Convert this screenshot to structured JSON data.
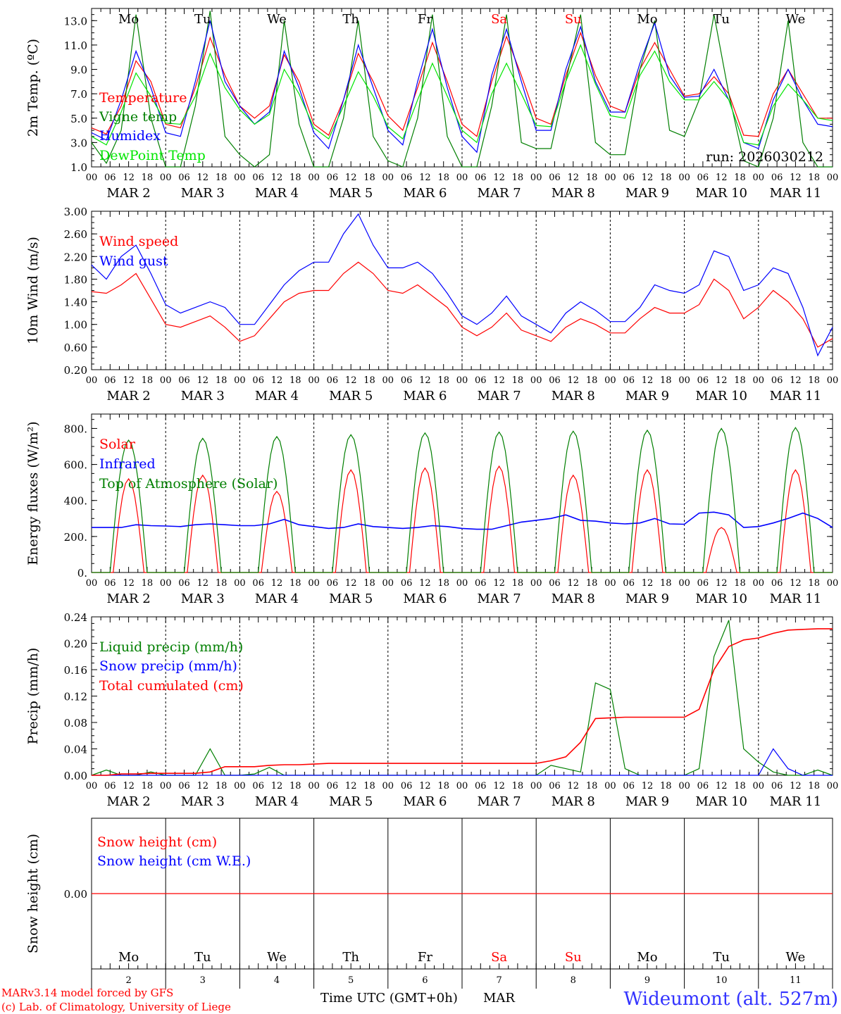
{
  "header": {
    "run_label": "run: 2026030212"
  },
  "footer": {
    "model_line": "MARv3.14 model forced by GFS",
    "credit_line": "(c) Lab. of Climatology, University of Liege",
    "xaxis_label": "Time UTC (GMT+0h)",
    "month": "MAR",
    "station": "Wideumont (alt. 527m)"
  },
  "colors": {
    "red": "#ff0000",
    "green": "#007f00",
    "blue": "#0000ff",
    "lightgreen": "#00e600",
    "station": "#3333ff"
  },
  "days": [
    {
      "name": "Mo",
      "date": "2",
      "weekend": false
    },
    {
      "name": "Tu",
      "date": "3",
      "weekend": false
    },
    {
      "name": "We",
      "date": "4",
      "weekend": false
    },
    {
      "name": "Th",
      "date": "5",
      "weekend": false
    },
    {
      "name": "Fr",
      "date": "6",
      "weekend": false
    },
    {
      "name": "Sa",
      "date": "7",
      "weekend": true
    },
    {
      "name": "Su",
      "date": "8",
      "weekend": true
    },
    {
      "name": "Mo",
      "date": "9",
      "weekend": false
    },
    {
      "name": "Tu",
      "date": "10",
      "weekend": false
    },
    {
      "name": "We",
      "date": "11",
      "weekend": false
    }
  ],
  "hour_ticks": [
    "00",
    "06",
    "12",
    "18"
  ],
  "chart_data": [
    {
      "id": "temp",
      "type": "line",
      "ylabel": "2m Temp. (ºC)",
      "ylim": [
        1,
        14
      ],
      "yticks": [
        1,
        3,
        5,
        7,
        9,
        11,
        13
      ],
      "ytick_labels": [
        "1.0",
        "3.0",
        "5.0",
        "7.0",
        "9.0",
        "11.0",
        "13.0"
      ],
      "series": [
        {
          "name": "Temperature",
          "color": "#ff0000",
          "values": [
            4.2,
            3.7,
            6.0,
            9.7,
            8.0,
            4.5,
            4.2,
            7.5,
            11.6,
            8.5,
            6.0,
            5.0,
            6.0,
            10.2,
            8.0,
            4.5,
            3.6,
            6.5,
            10.3,
            8.0,
            5.2,
            4.0,
            7.5,
            11.2,
            8.0,
            4.5,
            3.5,
            8.0,
            11.7,
            8.5,
            5.0,
            4.5,
            8.5,
            12.0,
            8.5,
            6.0,
            5.5,
            9.0,
            11.2,
            9.0,
            6.8,
            7.0,
            8.4,
            7.0,
            3.6,
            3.5,
            7.0,
            9.0,
            7.0,
            5.0,
            5.0
          ]
        },
        {
          "name": "Vigne temp",
          "color": "#007f00",
          "values": [
            3.0,
            1.3,
            4.0,
            13.5,
            5.0,
            1.0,
            1.0,
            6.0,
            13.8,
            3.5,
            2.0,
            0.8,
            2.0,
            13.0,
            4.5,
            0.8,
            1.0,
            5.0,
            13.0,
            3.5,
            1.5,
            0.8,
            5.0,
            13.5,
            3.5,
            1.0,
            0.8,
            6.0,
            13.5,
            3.0,
            2.5,
            2.5,
            8.0,
            13.5,
            3.0,
            2.0,
            2.0,
            9.0,
            13.0,
            4.0,
            3.5,
            6.5,
            13.5,
            7.0,
            1.5,
            1.0,
            5.0,
            13.0,
            3.0,
            1.0,
            1.0
          ]
        },
        {
          "name": "Humidex",
          "color": "#0000ff",
          "values": [
            3.8,
            3.2,
            6.5,
            10.5,
            7.5,
            3.8,
            3.5,
            8.0,
            13.0,
            8.0,
            6.0,
            4.5,
            5.5,
            10.5,
            7.5,
            3.8,
            2.5,
            6.5,
            11.0,
            7.5,
            4.0,
            2.8,
            8.0,
            12.3,
            7.5,
            3.5,
            2.2,
            8.5,
            12.3,
            8.0,
            4.0,
            4.0,
            9.0,
            12.5,
            8.0,
            5.5,
            5.5,
            9.5,
            12.8,
            8.5,
            6.7,
            6.8,
            9.0,
            6.5,
            3.0,
            2.5,
            6.5,
            9.0,
            6.5,
            4.5,
            4.3
          ]
        },
        {
          "name": "DewPoint Temp",
          "color": "#00e600",
          "values": [
            3.5,
            2.8,
            5.5,
            8.7,
            6.8,
            4.6,
            4.5,
            6.8,
            10.3,
            7.5,
            5.7,
            4.5,
            5.3,
            9.0,
            7.0,
            4.2,
            3.3,
            6.0,
            8.8,
            6.8,
            4.3,
            3.3,
            6.5,
            9.5,
            6.8,
            4.0,
            3.0,
            7.0,
            9.5,
            7.0,
            4.4,
            4.3,
            8.0,
            11.0,
            7.8,
            5.2,
            5.0,
            8.5,
            10.5,
            8.0,
            6.5,
            6.5,
            8.0,
            6.5,
            3.0,
            2.8,
            6.0,
            7.8,
            6.5,
            5.0,
            4.8
          ]
        }
      ],
      "annotation": "run: 2026030212"
    },
    {
      "id": "wind",
      "type": "line",
      "ylabel": "10m Wind (m/s)",
      "ylim": [
        0.2,
        3.0
      ],
      "yticks": [
        0.2,
        0.6,
        1.0,
        1.4,
        1.8,
        2.2,
        2.6,
        3.0
      ],
      "ytick_labels": [
        "0.20",
        "0.60",
        "1.00",
        "1.40",
        "1.80",
        "2.20",
        "2.60",
        "3.00"
      ],
      "series": [
        {
          "name": "Wind speed",
          "color": "#ff0000",
          "values": [
            1.58,
            1.55,
            1.7,
            1.9,
            1.45,
            1.0,
            0.95,
            1.05,
            1.15,
            0.95,
            0.7,
            0.8,
            1.1,
            1.4,
            1.55,
            1.6,
            1.6,
            1.9,
            2.1,
            1.9,
            1.6,
            1.55,
            1.7,
            1.5,
            1.3,
            0.95,
            0.8,
            0.95,
            1.2,
            0.9,
            0.8,
            0.7,
            0.95,
            1.1,
            1.0,
            0.85,
            0.85,
            1.1,
            1.3,
            1.2,
            1.2,
            1.35,
            1.8,
            1.6,
            1.1,
            1.3,
            1.6,
            1.4,
            1.1,
            0.6,
            0.75
          ]
        },
        {
          "name": "Wind gust",
          "color": "#0000ff",
          "values": [
            2.05,
            1.8,
            2.2,
            2.4,
            1.9,
            1.35,
            1.2,
            1.3,
            1.4,
            1.3,
            1.0,
            1.0,
            1.35,
            1.7,
            1.95,
            2.1,
            2.1,
            2.6,
            2.95,
            2.4,
            2.0,
            2.0,
            2.1,
            1.9,
            1.55,
            1.15,
            1.0,
            1.2,
            1.5,
            1.15,
            1.0,
            0.85,
            1.2,
            1.4,
            1.25,
            1.05,
            1.05,
            1.3,
            1.7,
            1.6,
            1.55,
            1.7,
            2.3,
            2.2,
            1.6,
            1.7,
            2.0,
            1.9,
            1.3,
            0.45,
            0.95
          ]
        }
      ]
    },
    {
      "id": "flux",
      "type": "line",
      "ylabel": "Energy fluxes (W/m²)",
      "ylim": [
        0,
        880
      ],
      "yticks": [
        0,
        200,
        400,
        600,
        800
      ],
      "ytick_labels": [
        "0.",
        "200.",
        "400.",
        "600.",
        "800."
      ],
      "series": [
        {
          "name": "Solar",
          "color": "#ff0000",
          "peaks": [
            520,
            540,
            450,
            570,
            580,
            590,
            540,
            570,
            250,
            570
          ]
        },
        {
          "name": "Infrared",
          "color": "#0000ff",
          "values": [
            250,
            250,
            250,
            265,
            260,
            258,
            255,
            265,
            270,
            265,
            260,
            260,
            270,
            295,
            265,
            255,
            245,
            250,
            270,
            255,
            250,
            245,
            250,
            260,
            255,
            245,
            240,
            240,
            260,
            280,
            290,
            300,
            320,
            290,
            285,
            275,
            270,
            275,
            300,
            270,
            268,
            330,
            335,
            320,
            250,
            255,
            275,
            300,
            330,
            300,
            250
          ]
        },
        {
          "name": "Top of Atmosphere (Solar)",
          "color": "#007f00",
          "peaks": [
            735,
            745,
            755,
            765,
            775,
            780,
            785,
            790,
            800,
            805
          ]
        }
      ]
    },
    {
      "id": "precip",
      "type": "line",
      "ylabel": "Precip (mm/h)",
      "ylim": [
        0,
        0.24
      ],
      "yticks": [
        0,
        0.04,
        0.08,
        0.12,
        0.16,
        0.2,
        0.24
      ],
      "ytick_labels": [
        "0.00",
        "0.04",
        "0.08",
        "0.12",
        "0.16",
        "0.20",
        "0.24"
      ],
      "series": [
        {
          "name": "Liquid precip (mm/h)",
          "color": "#007f00",
          "values": [
            0,
            0.008,
            0,
            0,
            0.005,
            0,
            0,
            0,
            0.04,
            0,
            0,
            0.002,
            0.012,
            0,
            0,
            0,
            0,
            0,
            0,
            0,
            0,
            0,
            0,
            0,
            0,
            0,
            0,
            0,
            0,
            0,
            0,
            0.015,
            0.01,
            0.005,
            0.14,
            0.13,
            0.01,
            0,
            0,
            0,
            0,
            0.01,
            0.18,
            0.235,
            0.04,
            0.02,
            0.005,
            0,
            0,
            0.008,
            0
          ]
        },
        {
          "name": "Snow precip (mm/h)",
          "color": "#0000ff",
          "values": [
            0,
            0,
            0,
            0,
            0,
            0,
            0,
            0,
            0,
            0,
            0,
            0,
            0,
            0,
            0,
            0,
            0,
            0,
            0,
            0,
            0,
            0,
            0,
            0,
            0,
            0,
            0,
            0,
            0,
            0,
            0,
            0,
            0,
            0,
            0,
            0,
            0,
            0,
            0,
            0,
            0,
            0,
            0,
            0,
            0,
            0,
            0.04,
            0.01,
            0,
            0,
            0
          ]
        },
        {
          "name": "Total cumulated (cm)",
          "color": "#ff0000",
          "values": [
            0,
            0,
            0.002,
            0.002,
            0.003,
            0.003,
            0.003,
            0.003,
            0.005,
            0.013,
            0.013,
            0.013,
            0.015,
            0.016,
            0.016,
            0.017,
            0.018,
            0.018,
            0.018,
            0.018,
            0.018,
            0.018,
            0.018,
            0.018,
            0.018,
            0.018,
            0.018,
            0.018,
            0.018,
            0.018,
            0.018,
            0.022,
            0.028,
            0.05,
            0.086,
            0.087,
            0.088,
            0.088,
            0.088,
            0.088,
            0.088,
            0.1,
            0.16,
            0.195,
            0.205,
            0.208,
            0.215,
            0.22,
            0.221,
            0.222,
            0.222
          ]
        }
      ]
    },
    {
      "id": "snow",
      "type": "line",
      "ylabel": "Snow height (cm)",
      "ylim": [
        -1,
        1
      ],
      "yticks": [
        0
      ],
      "ytick_labels": [
        "0.00"
      ],
      "series": [
        {
          "name": "Snow height (cm)",
          "color": "#ff0000",
          "values": [
            0,
            0,
            0,
            0,
            0,
            0,
            0,
            0,
            0,
            0,
            0,
            0,
            0,
            0,
            0,
            0,
            0,
            0,
            0,
            0,
            0,
            0,
            0,
            0,
            0,
            0,
            0,
            0,
            0,
            0,
            0,
            0,
            0,
            0,
            0,
            0,
            0,
            0,
            0,
            0,
            0,
            0,
            0,
            0,
            0,
            0,
            0,
            0,
            0,
            0,
            0
          ]
        },
        {
          "name": "Snow height (cm W.E.)",
          "color": "#0000ff",
          "values": []
        }
      ]
    }
  ]
}
